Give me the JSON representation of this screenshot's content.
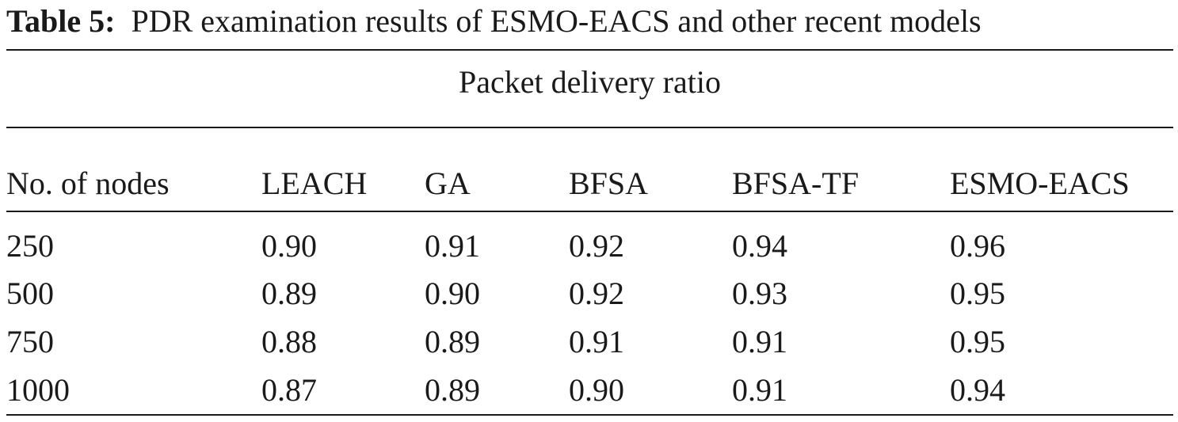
{
  "caption": {
    "label": "Table 5:",
    "text": "PDR examination results of ESMO-EACS and other recent models"
  },
  "table": {
    "span_header": "Packet delivery ratio",
    "columns": [
      "No. of nodes",
      "LEACH",
      "GA",
      "BFSA",
      "BFSA-TF",
      "ESMO-EACS"
    ],
    "rows": [
      [
        "250",
        "0.90",
        "0.91",
        "0.92",
        "0.94",
        "0.96"
      ],
      [
        "500",
        "0.89",
        "0.90",
        "0.92",
        "0.93",
        "0.95"
      ],
      [
        "750",
        "0.88",
        "0.89",
        "0.91",
        "0.91",
        "0.95"
      ],
      [
        "1000",
        "0.87",
        "0.89",
        "0.90",
        "0.91",
        "0.94"
      ]
    ]
  }
}
